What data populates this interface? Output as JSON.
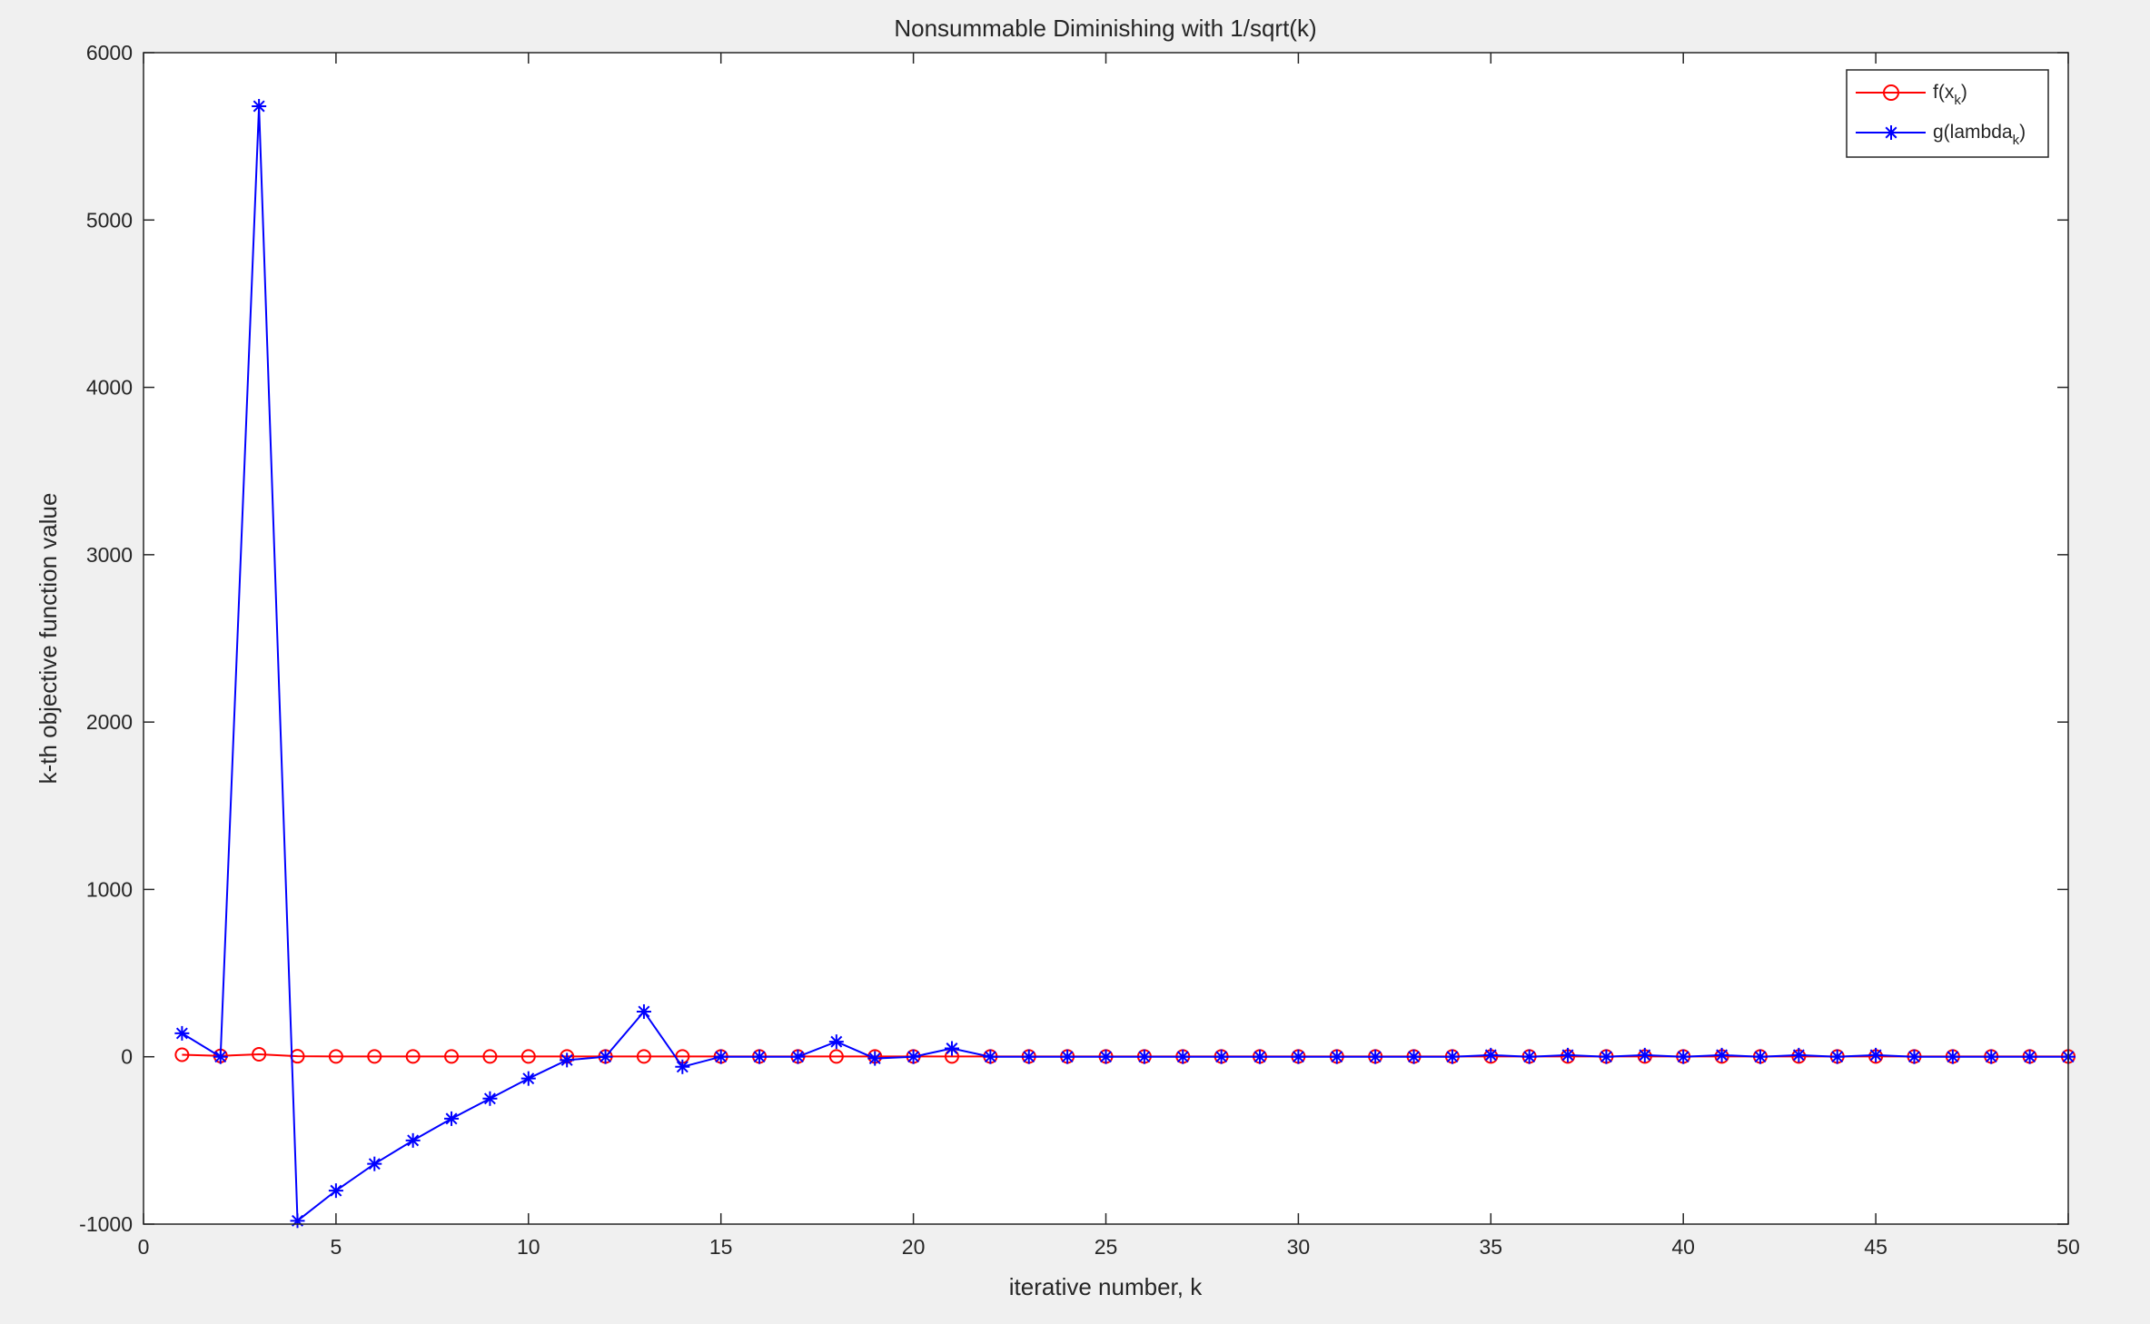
{
  "chart_data": {
    "type": "line",
    "title": "Nonsummable Diminishing with 1/sqrt(k)",
    "xlabel": "iterative number, k",
    "ylabel": "k-th objective function value",
    "xlim": [
      0,
      50
    ],
    "ylim": [
      -1000,
      6000
    ],
    "xticks": [
      0,
      5,
      10,
      15,
      20,
      25,
      30,
      35,
      40,
      45,
      50
    ],
    "yticks": [
      -1000,
      0,
      1000,
      2000,
      3000,
      4000,
      5000,
      6000
    ],
    "grid": false,
    "legend_position": "top-right",
    "x": [
      1,
      2,
      3,
      4,
      5,
      6,
      7,
      8,
      9,
      10,
      11,
      12,
      13,
      14,
      15,
      16,
      17,
      18,
      19,
      20,
      21,
      22,
      23,
      24,
      25,
      26,
      27,
      28,
      29,
      30,
      31,
      32,
      33,
      34,
      35,
      36,
      37,
      38,
      39,
      40,
      41,
      42,
      43,
      44,
      45,
      46,
      47,
      48,
      49,
      50
    ],
    "series": [
      {
        "legend_main": "f(x",
        "legend_sub": "k",
        "legend_tail": ")",
        "color": "#ff0000",
        "marker": "circle",
        "values": [
          12,
          5,
          15,
          3,
          2,
          2,
          2,
          2,
          2,
          2,
          2,
          2,
          2,
          2,
          2,
          2,
          2,
          2,
          2,
          2,
          2,
          2,
          2,
          2,
          2,
          2,
          2,
          2,
          2,
          2,
          2,
          2,
          2,
          2,
          2,
          2,
          2,
          2,
          2,
          2,
          2,
          2,
          2,
          2,
          2,
          2,
          2,
          2,
          2,
          2
        ]
      },
      {
        "legend_main": "g(lambda",
        "legend_sub": "k",
        "legend_tail": ")",
        "color": "#0000ff",
        "marker": "star",
        "values": [
          140,
          0,
          5680,
          -980,
          -800,
          -640,
          -500,
          -370,
          -250,
          -130,
          -20,
          0,
          270,
          -60,
          0,
          0,
          0,
          90,
          -10,
          0,
          50,
          0,
          0,
          0,
          0,
          0,
          0,
          0,
          0,
          0,
          0,
          0,
          0,
          0,
          10,
          0,
          10,
          0,
          10,
          0,
          10,
          0,
          10,
          0,
          10,
          0,
          0,
          0,
          0,
          0
        ]
      }
    ]
  }
}
